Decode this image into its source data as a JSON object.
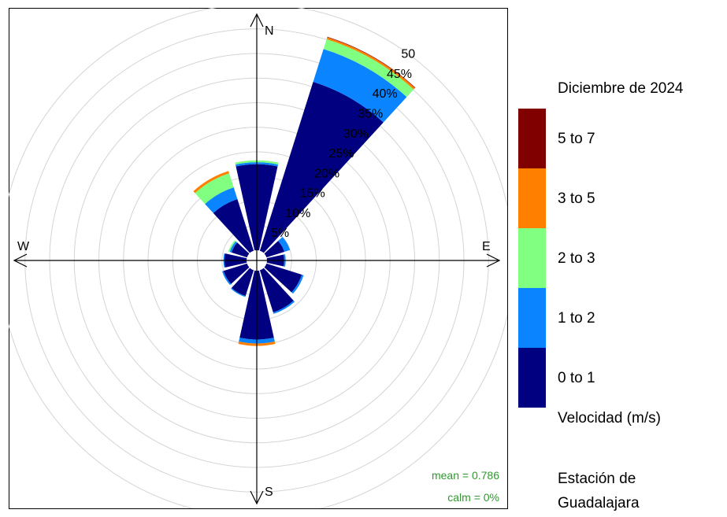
{
  "chart_data": {
    "type": "windrose",
    "title": "Diciembre de 2024",
    "legend_title": "Velocidad (m/s)",
    "directions_deg": [
      0,
      30,
      60,
      90,
      120,
      150,
      180,
      210,
      240,
      270,
      300,
      330
    ],
    "cardinals": [
      "N",
      "E",
      "S",
      "W"
    ],
    "ring_labels": [
      "5%",
      "10%",
      "15%",
      "20%",
      "25%",
      "30%",
      "35%",
      "40%",
      "45%",
      "50"
    ],
    "rmax": 50,
    "bins": [
      {
        "label": "0 to 1",
        "color": "#000080"
      },
      {
        "label": "1 to 2",
        "color": "#0A85FF"
      },
      {
        "label": "2 to 3",
        "color": "#80FF80"
      },
      {
        "label": "3 to 5",
        "color": "#FF8000"
      },
      {
        "label": "5 to 7",
        "color": "#800000"
      }
    ],
    "series": [
      {
        "direction": 0,
        "values": [
          17.5,
          0.4,
          0.4,
          0.0,
          0.0
        ]
      },
      {
        "direction": 30,
        "values": [
          36.0,
          7.0,
          2.1,
          0.4,
          0.1
        ]
      },
      {
        "direction": 60,
        "values": [
          3.8,
          1.2,
          0.0,
          0.0,
          0.0
        ]
      },
      {
        "direction": 90,
        "values": [
          3.5,
          0.3,
          0.0,
          0.0,
          0.0
        ]
      },
      {
        "direction": 120,
        "values": [
          7.5,
          0.4,
          0.0,
          0.0,
          0.0
        ]
      },
      {
        "direction": 150,
        "values": [
          9.0,
          0.3,
          0.0,
          0.0,
          0.0
        ]
      },
      {
        "direction": 180,
        "values": [
          14.0,
          0.8,
          0.0,
          0.5,
          0.0
        ]
      },
      {
        "direction": 210,
        "values": [
          5.5,
          0.2,
          0.0,
          0.0,
          0.0
        ]
      },
      {
        "direction": 240,
        "values": [
          5.0,
          0.3,
          0.0,
          0.0,
          0.0
        ]
      },
      {
        "direction": 270,
        "values": [
          4.5,
          0.2,
          0.0,
          0.0,
          0.0
        ]
      },
      {
        "direction": 300,
        "values": [
          3.3,
          0.4,
          0.3,
          0.0,
          0.0
        ]
      },
      {
        "direction": 330,
        "values": [
          11.0,
          2.5,
          3.0,
          0.5,
          0.0
        ]
      }
    ],
    "stats": {
      "mean": "mean = 0.786",
      "calm": "calm = 0%"
    },
    "legend_position": "right",
    "grid": true
  },
  "station": {
    "line1": "Estación de",
    "line2": "Guadalajara"
  }
}
